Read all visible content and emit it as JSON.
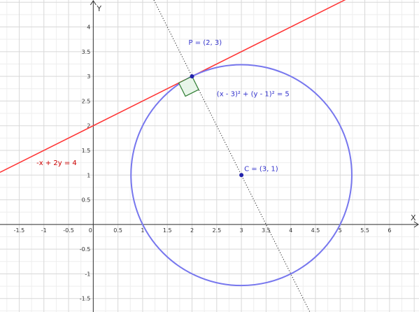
{
  "graph": {
    "view": {
      "x_min": -1.889,
      "x_max": 6.597,
      "y_min": -1.773,
      "y_max": 4.546
    },
    "axes": {
      "x_label": "X",
      "y_label": "Y",
      "x_ticks": [
        "-1.5",
        "-1",
        "-0.5",
        "0",
        "0.5",
        "1",
        "1.5",
        "2",
        "2.5",
        "3",
        "3.5",
        "4",
        "4.5",
        "5",
        "5.5",
        "6"
      ],
      "y_ticks": [
        "-1.5",
        "-1",
        "-0.5",
        "0.5",
        "1",
        "1.5",
        "2",
        "2.5",
        "3",
        "3.5",
        "4"
      ]
    },
    "grid": {
      "visible": true,
      "major_step": 0.5,
      "minor_step": 0.25
    },
    "colors": {
      "tangent_line": "#ff3333",
      "tangent_label": "#cc0000",
      "circle": "#7777ee",
      "points": "#2222aa",
      "labels": "#3333cc",
      "normal_line": "#333333",
      "right_angle_stroke": "#2e7d32",
      "right_angle_fill": "#e8f5e9"
    },
    "circle": {
      "cx": 3,
      "cy": 1,
      "r2": 5,
      "label": "(x - 3)² + (y - 1)² = 5"
    },
    "tangent_line": {
      "a": -1,
      "b": 2,
      "c": 4,
      "label": "-x + 2y = 4"
    },
    "normal_line": {
      "through": [
        [
          3,
          1
        ],
        [
          2,
          3
        ]
      ],
      "style": "dotted"
    },
    "points": [
      {
        "name": "P",
        "x": 2,
        "y": 3,
        "label": "P = (2, 3)"
      },
      {
        "name": "C",
        "x": 3,
        "y": 1,
        "label": "C = (3, 1)"
      }
    ],
    "right_angle_marker": {
      "at": [
        2,
        3
      ],
      "size": 0.3
    }
  }
}
